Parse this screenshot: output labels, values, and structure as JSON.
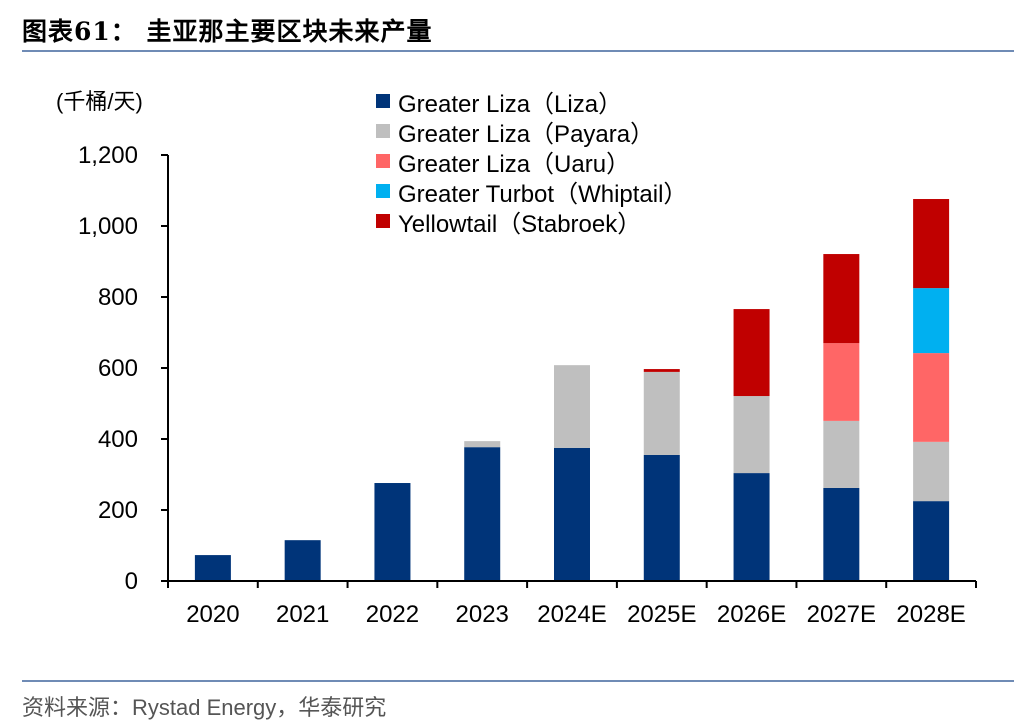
{
  "title": "图表61：  圭亚那主要区块未来产量",
  "source": "资料来源：Rystad Energy，华泰研究",
  "chart_data": {
    "type": "bar",
    "stacked": true,
    "ylabel": "(千桶/天)",
    "ylim": [
      0,
      1200
    ],
    "yticks": [
      0,
      200,
      400,
      600,
      800,
      1000,
      1200
    ],
    "ytick_labels": [
      "0",
      "200",
      "400",
      "600",
      "800",
      "1,000",
      "1,200"
    ],
    "categories": [
      "2020",
      "2021",
      "2022",
      "2023",
      "2024E",
      "2025E",
      "2026E",
      "2027E",
      "2028E"
    ],
    "grid": false,
    "legend_position": "top",
    "series": [
      {
        "name": "Greater Liza（Liza）",
        "color": "#003479",
        "values": [
          73,
          115,
          276,
          377,
          375,
          355,
          304,
          262,
          225
        ]
      },
      {
        "name": "Greater Liza（Payara）",
        "color": "#bfbfbf",
        "values": [
          0,
          0,
          0,
          17,
          233,
          234,
          217,
          189,
          167
        ]
      },
      {
        "name": "Greater Liza（Uaru）",
        "color": "#ff6666",
        "values": [
          0,
          0,
          0,
          0,
          0,
          0,
          0,
          219,
          250
        ]
      },
      {
        "name": "Greater Turbot（Whiptail）",
        "color": "#00b0f0",
        "values": [
          0,
          0,
          0,
          0,
          0,
          0,
          0,
          0,
          183
        ]
      },
      {
        "name": "Yellowtail（Stabroek）",
        "color": "#c00000",
        "values": [
          0,
          0,
          0,
          0,
          0,
          8,
          245,
          251,
          251
        ]
      }
    ]
  }
}
